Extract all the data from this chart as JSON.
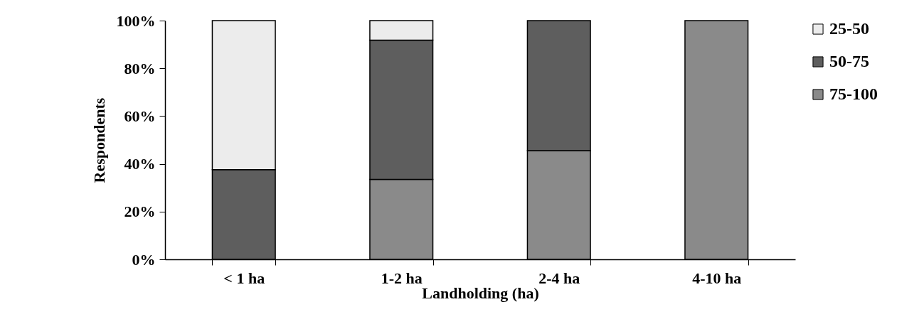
{
  "chart_data": {
    "type": "bar",
    "stacked": true,
    "xlabel": "Landholding (ha)",
    "ylabel": "Respondents",
    "categories": [
      "< 1 ha",
      "1-2 ha",
      "2-4 ha",
      "4-10 ha"
    ],
    "series": [
      {
        "name": "75-100",
        "color": "#8a8a8a",
        "values": [
          0,
          33.5,
          45.5,
          100
        ]
      },
      {
        "name": "50-75",
        "color": "#5e5e5e",
        "values": [
          37.6,
          58.3,
          54.5,
          0
        ]
      },
      {
        "name": "25-50",
        "color": "#ececec",
        "values": [
          62.4,
          8.2,
          0,
          0
        ]
      }
    ],
    "ylim": [
      0,
      100
    ],
    "yticks": [
      {
        "value": 0,
        "label": "0%"
      },
      {
        "value": 20,
        "label": "20%"
      },
      {
        "value": 40,
        "label": "40%"
      },
      {
        "value": 60,
        "label": "60%"
      },
      {
        "value": 80,
        "label": "80%"
      },
      {
        "value": 100,
        "label": "100%"
      }
    ],
    "grid": false,
    "legend": "right"
  }
}
